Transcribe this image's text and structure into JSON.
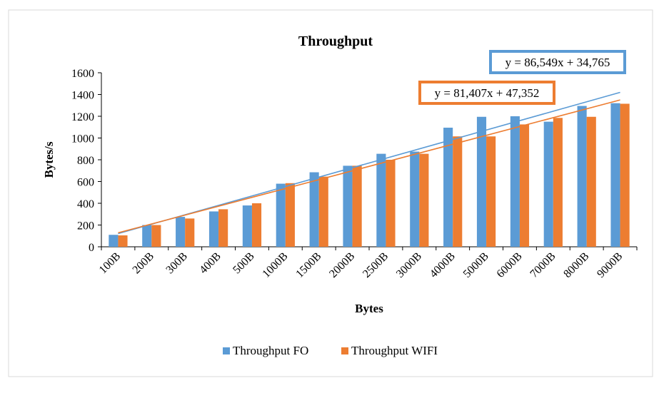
{
  "chart_data": {
    "type": "bar",
    "title": "Throughput",
    "xlabel": "Bytes",
    "ylabel": "Bytes/s",
    "ylim": [
      0,
      1600
    ],
    "yticks": [
      0,
      200,
      400,
      600,
      800,
      1000,
      1200,
      1400,
      1600
    ],
    "grid": false,
    "legend": "bottom",
    "categories": [
      "100B",
      "200B",
      "300B",
      "400B",
      "500B",
      "1000B",
      "1500B",
      "2000B",
      "2500B",
      "3000B",
      "4000B",
      "5000B",
      "6000B",
      "7000B",
      "8000B",
      "9000B"
    ],
    "series": [
      {
        "name": "Throughput FO",
        "color": "#5B9BD5",
        "values": [
          110,
          200,
          275,
          325,
          380,
          580,
          685,
          745,
          855,
          875,
          1095,
          1195,
          1200,
          1150,
          1295,
          1320
        ]
      },
      {
        "name": "Throughput WIFI",
        "color": "#ED7D31",
        "values": [
          105,
          200,
          260,
          345,
          400,
          585,
          645,
          745,
          800,
          855,
          1015,
          1015,
          1125,
          1185,
          1195,
          1315
        ]
      }
    ],
    "trendlines": [
      {
        "series": "Throughput FO",
        "color": "#5B9BD5",
        "slope": 86.549,
        "intercept": 34.765,
        "label": "y = 86,549x + 34,765",
        "label_border": "#5B9BD5"
      },
      {
        "series": "Throughput WIFI",
        "color": "#ED7D31",
        "slope": 81.407,
        "intercept": 47.352,
        "label": "y = 81,407x + 47,352",
        "label_border": "#ED7D31"
      }
    ]
  }
}
